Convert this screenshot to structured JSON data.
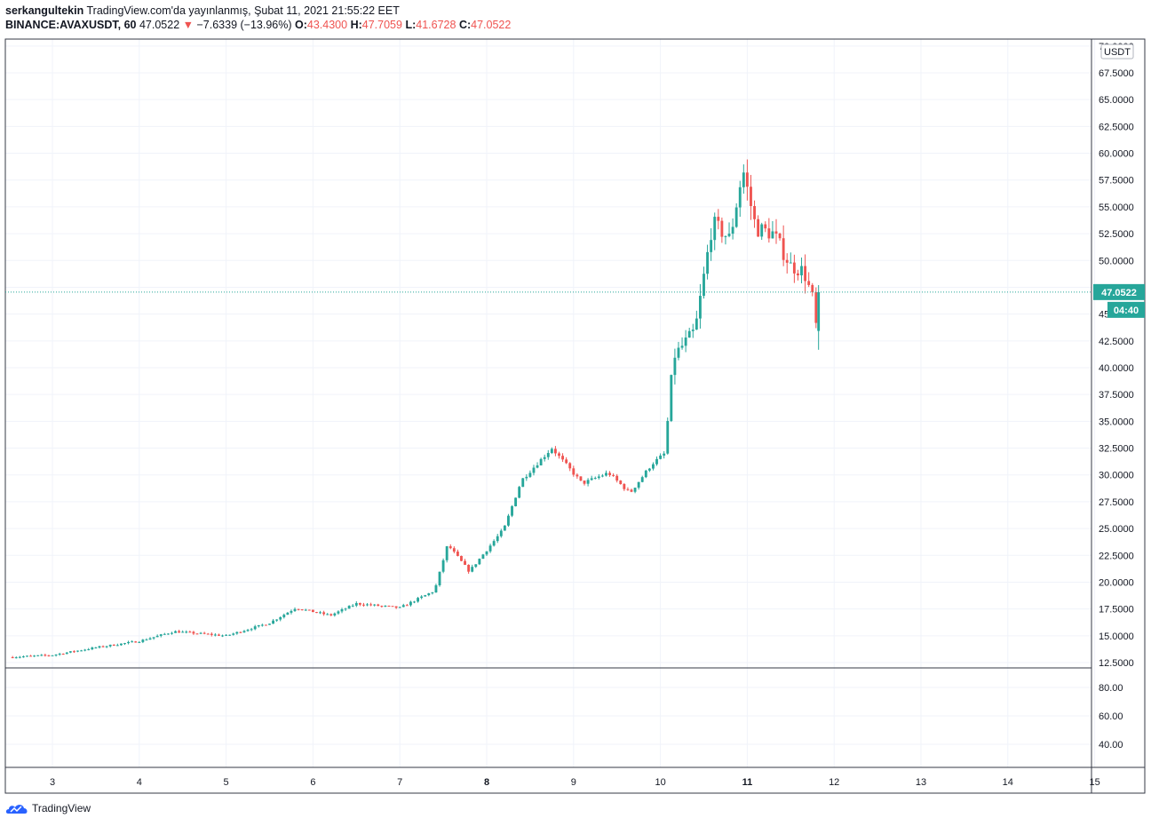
{
  "header": {
    "author": "serkangultekin",
    "published": "TradingView.com'da yayınlanmış, Şubat 11, 2021 21:55:22 EET",
    "symbol": "BINANCE:AVAXUSDT, 60",
    "last": "47.0522",
    "change_arrow": "▼",
    "change": "−7.6339 (−13.96%)",
    "o_label": "O:",
    "o_value": "43.4300",
    "h_label": "H:",
    "h_value": "47.7059",
    "l_label": "L:",
    "l_value": "41.6728",
    "c_label": "C:",
    "c_value": "47.0522"
  },
  "price_axis": {
    "currency_badge": "USDT",
    "last_price_label": "47.0522",
    "countdown_label": "04:40",
    "last_price_value": 47.0522,
    "ticks": [
      "70.0000",
      "67.5000",
      "65.0000",
      "62.5000",
      "60.0000",
      "57.5000",
      "55.0000",
      "52.5000",
      "50.0000",
      "47.5000",
      "45.0000",
      "42.5000",
      "40.0000",
      "37.5000",
      "35.0000",
      "32.5000",
      "30.0000",
      "27.5000",
      "25.0000",
      "22.5000",
      "20.0000",
      "17.5000",
      "15.0000",
      "12.5000"
    ],
    "lower_ticks": [
      "80.00",
      "60.00",
      "40.00"
    ]
  },
  "time_axis": {
    "ticks": [
      "3",
      "4",
      "5",
      "6",
      "7",
      "8",
      "9",
      "10",
      "11",
      "12",
      "13",
      "14",
      "15"
    ],
    "bold_ticks": [
      "8",
      "11"
    ]
  },
  "colors": {
    "up": "#26a69a",
    "down": "#ef5350",
    "grid": "#f0f3fa",
    "last_price": "#26a69a"
  },
  "chart_data": {
    "type": "candlestick",
    "symbol": "BINANCE:AVAXUSDT",
    "interval_minutes": 60,
    "ylim": [
      12.5,
      70
    ],
    "x_label_days": [
      "3",
      "4",
      "5",
      "6",
      "7",
      "8",
      "9",
      "10",
      "11",
      "12",
      "13",
      "14",
      "15"
    ],
    "key_points": [
      {
        "day": 2.5,
        "price": 13.0
      },
      {
        "day": 3.0,
        "price": 13.2
      },
      {
        "day": 3.5,
        "price": 13.9
      },
      {
        "day": 4.0,
        "price": 14.5
      },
      {
        "day": 4.4,
        "price": 15.4
      },
      {
        "day": 5.0,
        "price": 15.0
      },
      {
        "day": 5.5,
        "price": 16.2
      },
      {
        "day": 5.8,
        "price": 17.6
      },
      {
        "day": 6.2,
        "price": 16.9
      },
      {
        "day": 6.5,
        "price": 18.0
      },
      {
        "day": 7.0,
        "price": 17.6
      },
      {
        "day": 7.4,
        "price": 19.2
      },
      {
        "day": 7.55,
        "price": 23.5
      },
      {
        "day": 7.8,
        "price": 21.0
      },
      {
        "day": 8.2,
        "price": 25.0
      },
      {
        "day": 8.4,
        "price": 29.5
      },
      {
        "day": 8.75,
        "price": 32.5
      },
      {
        "day": 9.1,
        "price": 29.2
      },
      {
        "day": 9.4,
        "price": 30.2
      },
      {
        "day": 9.65,
        "price": 28.3
      },
      {
        "day": 9.9,
        "price": 31.0
      },
      {
        "day": 10.05,
        "price": 32.0
      },
      {
        "day": 10.15,
        "price": 41.0
      },
      {
        "day": 10.4,
        "price": 43.5
      },
      {
        "day": 10.6,
        "price": 53.5
      },
      {
        "day": 10.8,
        "price": 52.0
      },
      {
        "day": 10.95,
        "price": 58.5
      },
      {
        "day": 11.1,
        "price": 53.0
      },
      {
        "day": 11.3,
        "price": 52.5
      },
      {
        "day": 11.5,
        "price": 49.5
      },
      {
        "day": 11.65,
        "price": 49.0
      },
      {
        "day": 11.75,
        "price": 46.5
      },
      {
        "day": 11.8,
        "price": 43.4
      }
    ],
    "last_candle": {
      "open": 43.43,
      "high": 47.7059,
      "low": 41.6728,
      "close": 47.0522
    },
    "change": -7.6339,
    "change_pct": -13.96
  }
}
